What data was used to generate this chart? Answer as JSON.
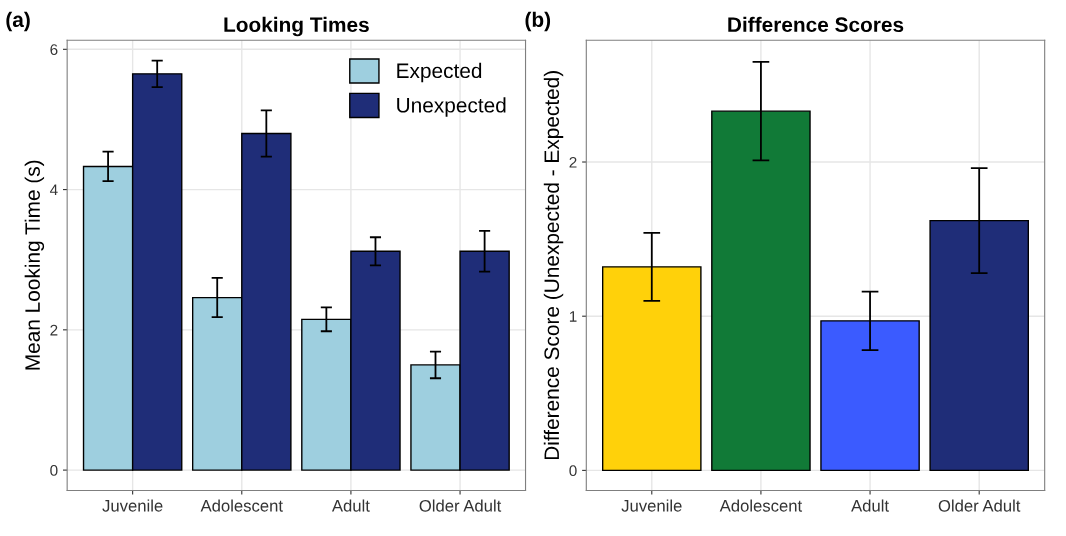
{
  "chart_data": [
    {
      "type": "bar",
      "title": "Looking Times",
      "ylabel": "Mean Looking Time (s)",
      "annotations": [
        "(a)"
      ],
      "categories": [
        "Juvenile",
        "Adolescent",
        "Adult",
        "Older Adult"
      ],
      "series": [
        {
          "name": "Expected",
          "color": "#9ecfdf",
          "values": [
            4.33,
            2.46,
            2.15,
            1.5
          ],
          "errors": [
            0.21,
            0.28,
            0.17,
            0.19
          ]
        },
        {
          "name": "Unexpected",
          "color": "#1f2d78",
          "values": [
            5.65,
            4.8,
            3.12,
            3.12
          ],
          "errors": [
            0.19,
            0.33,
            0.2,
            0.29
          ]
        }
      ],
      "ylim": [
        -0.29,
        6.13
      ],
      "yticks": [
        0,
        2,
        4,
        6
      ],
      "grid": true,
      "legend": "top right"
    },
    {
      "type": "bar",
      "title": "Difference Scores",
      "ylabel": "Difference Score (Unexpected - Expected)",
      "annotations": [
        "(b)"
      ],
      "categories": [
        "Juvenile",
        "Adolescent",
        "Adult",
        "Older Adult"
      ],
      "values": [
        1.32,
        2.33,
        0.97,
        1.62
      ],
      "errors": [
        0.22,
        0.32,
        0.19,
        0.34
      ],
      "colors": [
        "#ffd10a",
        "#117a37",
        "#3b5bff",
        "#1f2d78"
      ],
      "ylim": [
        -0.13,
        2.79
      ],
      "yticks": [
        0,
        1,
        2
      ],
      "grid": true
    }
  ]
}
